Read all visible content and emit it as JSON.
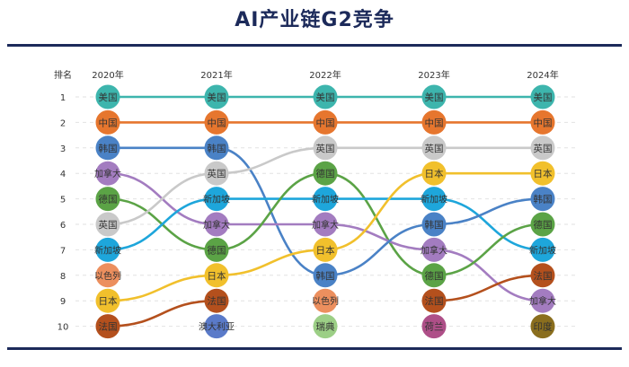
{
  "title": "AI产业链G2竞争",
  "chart_data": {
    "type": "bump",
    "y_header": "排名",
    "years": [
      "2020年",
      "2021年",
      "2022年",
      "2023年",
      "2024年"
    ],
    "ranks": [
      1,
      2,
      3,
      4,
      5,
      6,
      7,
      8,
      9,
      10
    ],
    "rankings": [
      [
        "美国",
        "中国",
        "韩国",
        "加拿大",
        "德国",
        "英国",
        "新加坡",
        "以色列",
        "日本",
        "法国"
      ],
      [
        "美国",
        "中国",
        "韩国",
        "英国",
        "新加坡",
        "加拿大",
        "德国",
        "日本",
        "法国",
        "澳大利亚"
      ],
      [
        "美国",
        "中国",
        "英国",
        "德国",
        "新加坡",
        "加拿大",
        "日本",
        "韩国",
        "以色列",
        "瑞典"
      ],
      [
        "美国",
        "中国",
        "英国",
        "日本",
        "新加坡",
        "韩国",
        "加拿大",
        "德国",
        "法国",
        "荷兰"
      ],
      [
        "美国",
        "中国",
        "英国",
        "日本",
        "韩国",
        "德国",
        "新加坡",
        "法国",
        "加拿大",
        "印度"
      ]
    ],
    "colors": {
      "美国": "#3db5ad",
      "中国": "#e6762e",
      "韩国": "#4a82c6",
      "加拿大": "#a37cc0",
      "德国": "#5ba346",
      "英国": "#c9c9c9",
      "新加坡": "#1ea6db",
      "以色列": "#ec8f5e",
      "日本": "#f1c02c",
      "法国": "#b4501d",
      "澳大利亚": "#5a7ac9",
      "瑞典": "#9ccf86",
      "荷兰": "#ae4f88",
      "印度": "#8a6e1e"
    },
    "grid": "dashed-horizontal"
  }
}
